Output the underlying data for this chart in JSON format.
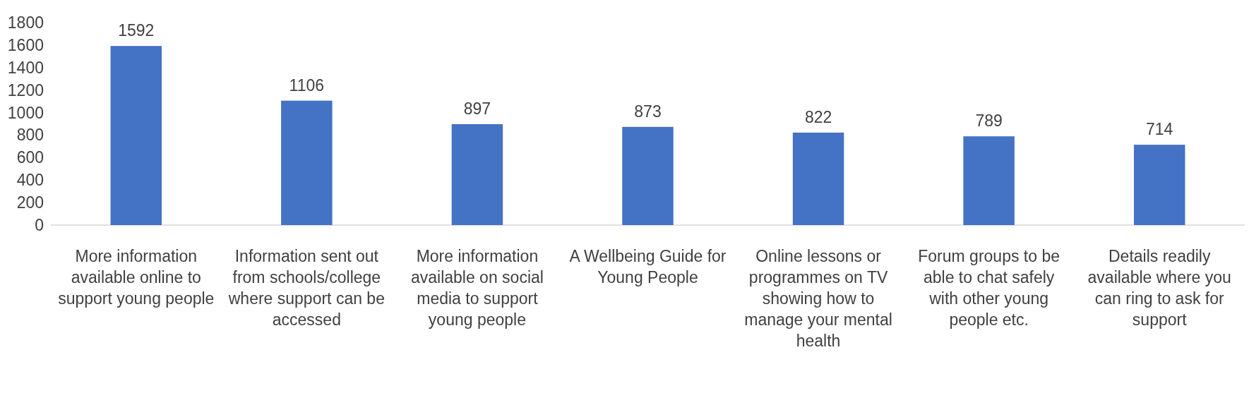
{
  "chart_data": {
    "type": "bar",
    "categories": [
      "More information available online to support young people",
      "Information sent out from schools/college where support can be accessed",
      "More information available on social media to support young people",
      "A Wellbeing Guide for Young People",
      "Online lessons or programmes on TV showing how to manage your mental health",
      "Forum groups to be able to chat safely with other young people etc.",
      "Details readily available where you can ring to ask for support"
    ],
    "values": [
      1592,
      1106,
      897,
      873,
      822,
      789,
      714
    ],
    "color": "#4472c4",
    "ylim": [
      0,
      1800
    ],
    "yticks": [
      0,
      200,
      400,
      600,
      800,
      1000,
      1200,
      1400,
      1600,
      1800
    ],
    "data_labels": true
  }
}
